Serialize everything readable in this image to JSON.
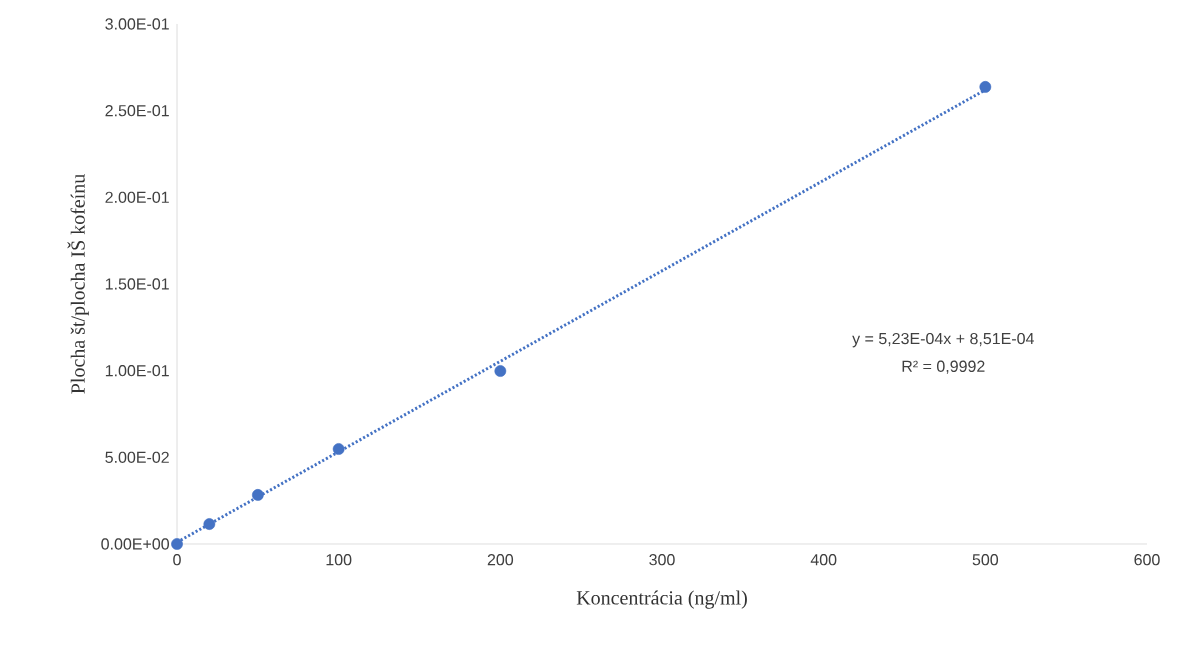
{
  "chart_data": {
    "type": "scatter",
    "xlabel": "Koncentrácia (ng/ml)",
    "ylabel": "Plocha št/plocha  IŠ kofeínu",
    "series": [
      {
        "color": "#4472c4",
        "marker": "circle",
        "x": [
          0,
          20,
          50,
          100,
          200,
          500
        ],
        "values": [
          0,
          0.0115,
          0.0283,
          0.0548,
          0.0998,
          0.2637
        ]
      },
      {
        "type": "line",
        "color": "#4472c4",
        "line_style": "dotted",
        "marker": "none",
        "x": [
          0,
          500
        ],
        "values": [
          0.001,
          0.262
        ]
      }
    ],
    "xlim": [
      0,
      600
    ],
    "xticks": [
      0,
      100,
      200,
      300,
      400,
      500,
      600
    ],
    "ylim": [
      0,
      0.3
    ],
    "yticks": [
      {
        "value": 0,
        "label": "0.00E+00"
      },
      {
        "value": 0.05,
        "label": "5.00E-02"
      },
      {
        "value": 0.1,
        "label": "1.00E-01"
      },
      {
        "value": 0.15,
        "label": "1.50E-01"
      },
      {
        "value": 0.2,
        "label": "2.00E-01"
      },
      {
        "value": 0.25,
        "label": "2.50E-01"
      },
      {
        "value": 0.3,
        "label": "3.00E-01"
      }
    ],
    "annotations": [
      "y = 5,23E-04x + 8,51E-04",
      "R² = 0,9992"
    ]
  }
}
